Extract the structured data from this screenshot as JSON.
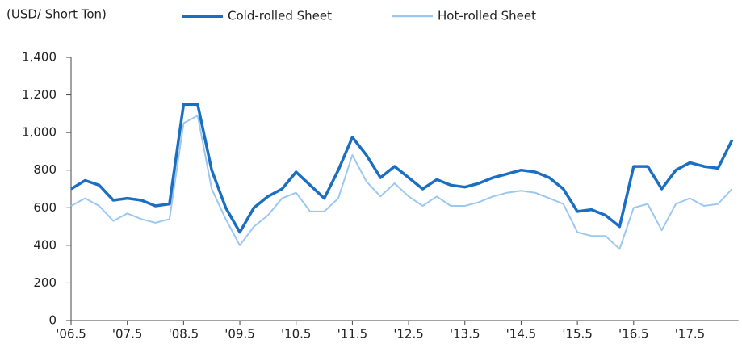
{
  "chart_data": {
    "type": "line",
    "y_label": "(USD/ Short Ton)",
    "categories": [
      "'06.5",
      null,
      null,
      null,
      "'07.5",
      null,
      null,
      null,
      "'08.5",
      null,
      null,
      null,
      "'09.5",
      null,
      null,
      null,
      "'10.5",
      null,
      null,
      null,
      "'11.5",
      null,
      null,
      null,
      "'12.5",
      null,
      null,
      null,
      "'13.5",
      null,
      null,
      null,
      "'14.5",
      null,
      null,
      null,
      "'15.5",
      null,
      null,
      null,
      "'16.5",
      null,
      null,
      null,
      "'17.5",
      null,
      null,
      null
    ],
    "series": [
      {
        "name": "Cold-rolled Sheet",
        "color": "#1a6fc2",
        "values": [
          700,
          745,
          720,
          640,
          650,
          640,
          610,
          620,
          1150,
          1150,
          800,
          600,
          470,
          600,
          660,
          700,
          790,
          720,
          650,
          800,
          975,
          880,
          760,
          820,
          760,
          700,
          750,
          720,
          710,
          730,
          760,
          780,
          800,
          790,
          760,
          700,
          580,
          590,
          560,
          500,
          820,
          820,
          700,
          800,
          840,
          820,
          810,
          960
        ]
      },
      {
        "name": "Hot-rolled Sheet",
        "color": "#9cc8ef",
        "values": [
          610,
          650,
          610,
          530,
          570,
          540,
          520,
          540,
          1050,
          1090,
          700,
          540,
          400,
          500,
          560,
          650,
          680,
          580,
          580,
          650,
          880,
          740,
          660,
          730,
          660,
          610,
          660,
          610,
          610,
          630,
          660,
          680,
          690,
          680,
          650,
          620,
          470,
          450,
          450,
          380,
          600,
          620,
          480,
          620,
          650,
          610,
          620,
          700
        ]
      }
    ],
    "ylim": [
      0,
      1400
    ],
    "yticks": [
      0,
      200,
      400,
      600,
      800,
      {
        "value": 1000,
        "label": "1,000"
      },
      {
        "value": 1200,
        "label": "1,200"
      },
      {
        "value": 1400,
        "label": "1,400"
      }
    ],
    "legend": "top"
  }
}
